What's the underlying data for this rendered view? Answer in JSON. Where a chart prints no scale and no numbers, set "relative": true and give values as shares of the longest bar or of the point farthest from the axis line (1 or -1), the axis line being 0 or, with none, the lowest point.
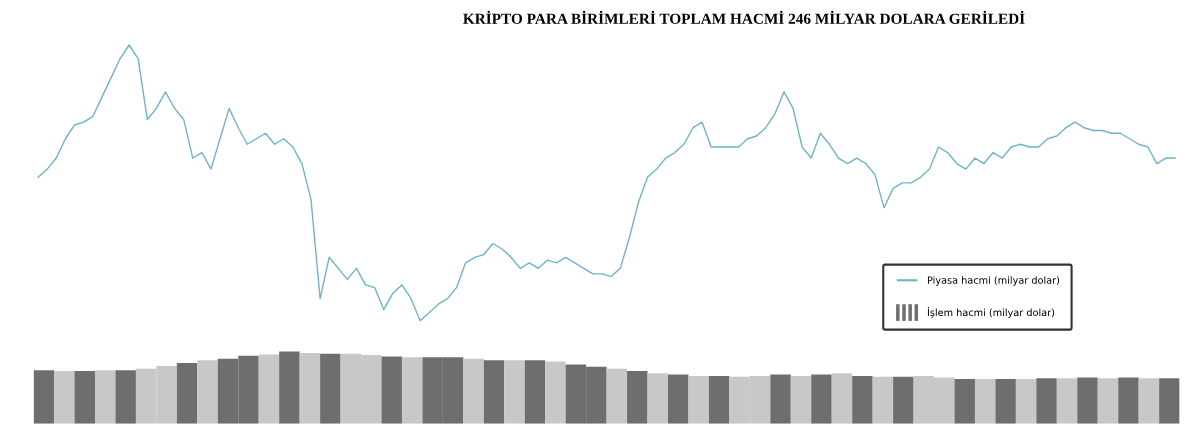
{
  "chart_data": [
    {
      "type": "line",
      "title": "KRİPTO PARA BİRİMLERİ TOPLAM HACMİ 246 MİLYAR DOLARA GERİLEDİ",
      "relative": true,
      "legend": "bottom right",
      "categories": [
        null,
        null,
        null,
        null,
        null,
        null,
        null,
        null,
        null,
        null,
        null,
        null,
        null,
        null,
        null,
        null,
        null,
        null,
        null,
        null,
        null,
        null,
        null,
        null,
        null,
        null,
        null,
        null,
        null,
        null,
        null,
        null,
        null,
        null,
        null,
        null,
        null,
        null,
        null,
        null,
        null,
        null,
        null,
        null,
        null,
        null,
        null,
        null,
        null,
        null,
        null,
        null,
        null,
        null,
        null,
        null,
        null,
        null,
        null,
        null,
        null,
        null,
        null,
        null,
        null,
        null,
        null,
        null,
        null,
        null,
        null,
        null,
        null,
        null,
        null,
        null,
        null,
        null,
        null,
        null,
        null,
        null,
        null,
        null,
        null,
        null,
        null,
        null,
        null,
        null,
        null,
        null,
        null,
        null,
        null,
        null,
        null,
        null,
        null,
        null,
        null,
        null,
        null,
        null,
        null,
        null,
        null,
        null,
        null,
        null,
        null,
        null,
        null,
        null,
        null,
        null,
        null,
        null,
        null,
        null,
        null,
        null,
        null,
        null,
        null,
        null
      ],
      "series": [
        {
          "name": "Piyasa hacmi (milyar dolar)",
          "color": "#6fb3c8",
          "values": [
            0.52,
            0.55,
            0.59,
            0.66,
            0.71,
            0.72,
            0.74,
            0.81,
            0.88,
            0.95,
            1.0,
            0.95,
            0.73,
            0.77,
            0.83,
            0.77,
            0.73,
            0.59,
            0.61,
            0.55,
            0.66,
            0.77,
            0.7,
            0.64,
            0.66,
            0.68,
            0.64,
            0.66,
            0.63,
            0.57,
            0.44,
            0.08,
            0.23,
            0.19,
            0.15,
            0.19,
            0.13,
            0.12,
            0.04,
            0.1,
            0.13,
            0.08,
            0.0,
            0.03,
            0.06,
            0.08,
            0.12,
            0.21,
            0.23,
            0.24,
            0.28,
            0.26,
            0.23,
            0.19,
            0.21,
            0.19,
            0.22,
            0.21,
            0.23,
            0.21,
            0.19,
            0.17,
            0.17,
            0.16,
            0.19,
            0.3,
            0.43,
            0.52,
            0.55,
            0.59,
            0.61,
            0.64,
            0.7,
            0.72,
            0.63,
            0.63,
            0.63,
            0.63,
            0.66,
            0.67,
            0.7,
            0.75,
            0.83,
            0.77,
            0.63,
            0.59,
            0.68,
            0.64,
            0.59,
            0.57,
            0.59,
            0.57,
            0.53,
            0.41,
            0.48,
            0.5,
            0.5,
            0.52,
            0.55,
            0.63,
            0.61,
            0.57,
            0.55,
            0.59,
            0.57,
            0.61,
            0.59,
            0.63,
            0.64,
            0.63,
            0.63,
            0.66,
            0.67,
            0.7,
            0.72,
            0.7,
            0.69,
            0.69,
            0.68,
            0.68,
            0.66,
            0.64,
            0.63,
            0.57,
            0.59,
            0.59
          ]
        }
      ]
    },
    {
      "type": "bar",
      "relative": true,
      "categories": [
        null,
        null,
        null,
        null,
        null,
        null,
        null,
        null,
        null,
        null,
        null,
        null,
        null,
        null,
        null,
        null,
        null,
        null,
        null,
        null,
        null,
        null,
        null,
        null,
        null,
        null,
        null,
        null,
        null,
        null,
        null,
        null,
        null,
        null,
        null,
        null,
        null,
        null,
        null,
        null,
        null,
        null,
        null,
        null,
        null,
        null,
        null,
        null,
        null,
        null,
        null,
        null,
        null,
        null,
        null,
        null
      ],
      "series": [
        {
          "name": "İşlem hacmi (milyar dolar)",
          "values": [
            0.74,
            0.73,
            0.73,
            0.74,
            0.74,
            0.76,
            0.8,
            0.84,
            0.88,
            0.9,
            0.94,
            0.96,
            1.0,
            0.98,
            0.97,
            0.97,
            0.95,
            0.93,
            0.92,
            0.92,
            0.92,
            0.9,
            0.88,
            0.88,
            0.88,
            0.86,
            0.82,
            0.79,
            0.76,
            0.73,
            0.7,
            0.68,
            0.66,
            0.66,
            0.65,
            0.66,
            0.68,
            0.66,
            0.68,
            0.7,
            0.66,
            0.65,
            0.65,
            0.66,
            0.64,
            0.62,
            0.62,
            0.62,
            0.62,
            0.63,
            0.63,
            0.64,
            0.63,
            0.64,
            0.63,
            0.63
          ],
          "colors": [
            "#6e6e6e",
            "#c8c8c8",
            "#6e6e6e",
            "#c8c8c8",
            "#6e6e6e",
            "#c8c8c8",
            "#c8c8c8",
            "#6e6e6e",
            "#c8c8c8",
            "#6e6e6e",
            "#6e6e6e",
            "#c8c8c8",
            "#6e6e6e",
            "#c8c8c8",
            "#6e6e6e",
            "#c8c8c8",
            "#c8c8c8",
            "#6e6e6e",
            "#c8c8c8",
            "#6e6e6e",
            "#6e6e6e",
            "#c8c8c8",
            "#6e6e6e",
            "#c8c8c8",
            "#6e6e6e",
            "#c8c8c8",
            "#6e6e6e",
            "#6e6e6e",
            "#c8c8c8",
            "#6e6e6e",
            "#c8c8c8",
            "#6e6e6e",
            "#c8c8c8",
            "#6e6e6e",
            "#c8c8c8",
            "#c8c8c8",
            "#6e6e6e",
            "#c8c8c8",
            "#6e6e6e",
            "#c8c8c8",
            "#6e6e6e",
            "#c8c8c8",
            "#6e6e6e",
            "#c8c8c8",
            "#c8c8c8",
            "#6e6e6e",
            "#c8c8c8",
            "#6e6e6e",
            "#c8c8c8",
            "#6e6e6e",
            "#c8c8c8",
            "#6e6e6e",
            "#c8c8c8",
            "#6e6e6e",
            "#c8c8c8",
            "#6e6e6e"
          ]
        }
      ]
    }
  ]
}
